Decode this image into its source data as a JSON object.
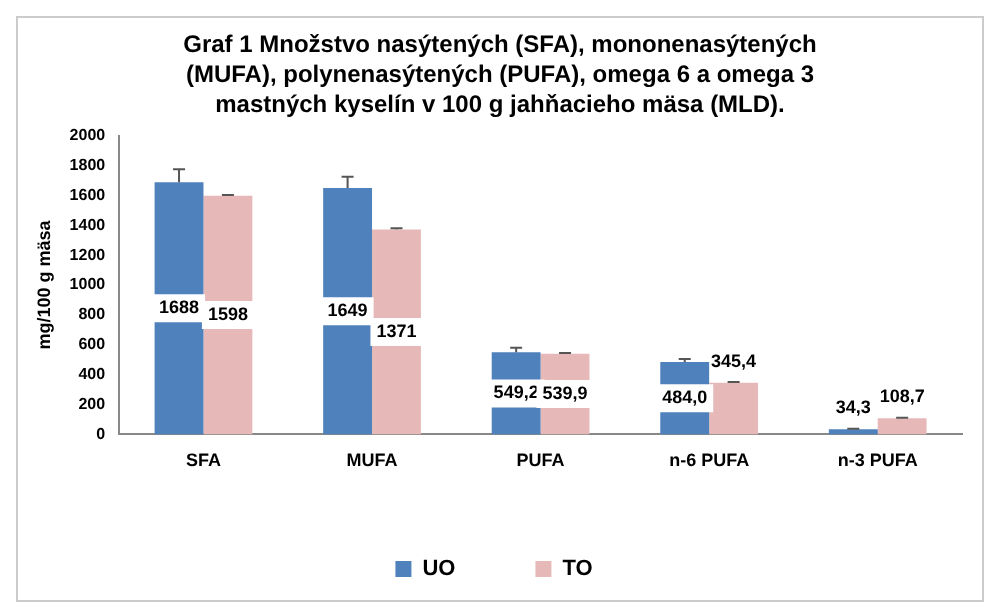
{
  "chart_data": {
    "type": "bar",
    "title": "Graf 1 Množstvo nasýtených (SFA), mononenasýtených (MUFA), polynenasýtených (PUFA), omega 6 a omega 3 mastných kyselín v 100 g jahňacieho mäsa (MLD).",
    "ylabel": "mg/100 g mäsa",
    "categories": [
      "SFA",
      "MUFA",
      "PUFA",
      "n-6 PUFA",
      "n-3 PUFA"
    ],
    "series": [
      {
        "name": "UO",
        "color": "#4f81bd",
        "values": [
          1688,
          1649,
          549.2,
          484.0,
          34.3
        ],
        "value_labels": [
          "1688",
          "1649",
          "549,2",
          "484,0",
          "34,3"
        ],
        "errors": [
          [
            1688,
            1775
          ],
          [
            1649,
            1725
          ],
          [
            549.2,
            580
          ],
          [
            484.0,
            505
          ],
          [
            34.3,
            38
          ]
        ]
      },
      {
        "name": "TO",
        "color": "#e6b9b8",
        "values": [
          1598,
          1371,
          539.9,
          345.4,
          108.7
        ],
        "value_labels": [
          "1598",
          "1371",
          "539,9",
          "345,4",
          "108,7"
        ],
        "errors": [
          [
            1598,
            1603
          ],
          [
            1371,
            1380
          ],
          [
            539.9,
            545
          ],
          [
            345.4,
            350
          ],
          [
            108.7,
            112
          ]
        ]
      }
    ],
    "ylim": [
      0,
      2000
    ],
    "yticks": [
      0,
      200,
      400,
      600,
      800,
      1000,
      1200,
      1400,
      1600,
      1800,
      2000
    ],
    "grid": false,
    "legend": "bottom"
  }
}
